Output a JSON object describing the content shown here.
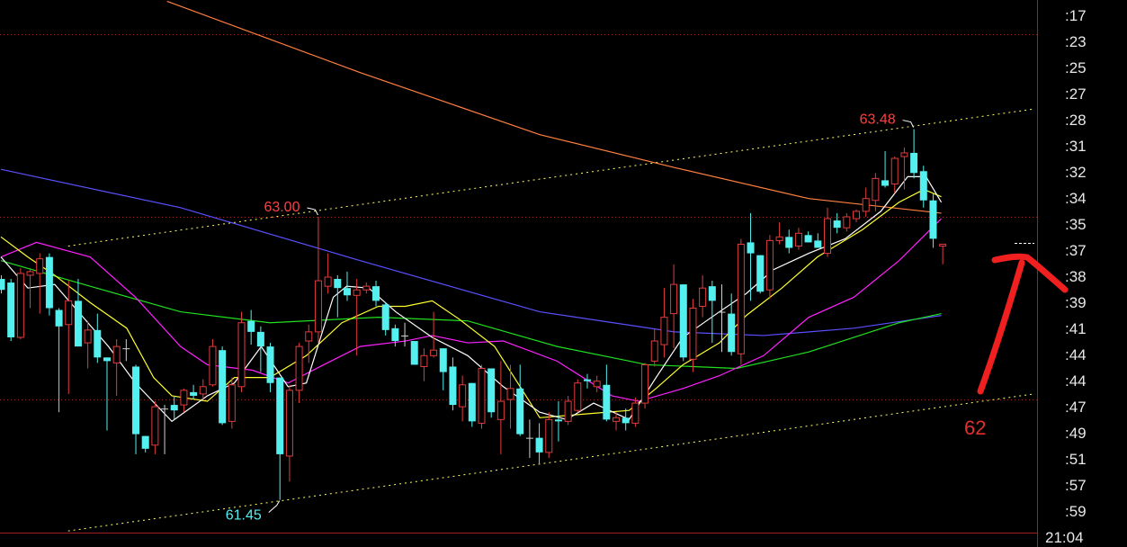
{
  "chart_data": {
    "type": "candlestick",
    "title": "",
    "colors": {
      "up": "#e03c3c",
      "down": "#54f0f0",
      "doji": "#d0d0d0",
      "grid": "#a02020",
      "channel": "#ffff60",
      "background": "#000000"
    },
    "candle_format": [
      "open",
      "high",
      "low",
      "close"
    ],
    "candles": [
      [
        62.66,
        62.68,
        62.58,
        62.6
      ],
      [
        62.64,
        62.66,
        62.32,
        62.34
      ],
      [
        62.34,
        62.72,
        62.33,
        62.69
      ],
      [
        62.68,
        62.72,
        62.5,
        62.7
      ],
      [
        62.69,
        62.8,
        62.47,
        62.77
      ],
      [
        62.78,
        62.8,
        62.46,
        62.5
      ],
      [
        62.49,
        62.5,
        61.93,
        62.4
      ],
      [
        62.41,
        62.65,
        62.03,
        62.54
      ],
      [
        62.54,
        62.66,
        62.29,
        62.29
      ],
      [
        62.31,
        62.43,
        62.17,
        62.38
      ],
      [
        62.38,
        62.47,
        62.2,
        62.23
      ],
      [
        62.23,
        62.23,
        61.83,
        62.21
      ],
      [
        62.2,
        62.33,
        62.02,
        62.29
      ],
      [
        62.28,
        62.33,
        62.21,
        62.28
      ],
      [
        62.18,
        62.19,
        61.7,
        61.81
      ],
      [
        61.8,
        61.8,
        61.71,
        61.73
      ],
      [
        61.75,
        61.99,
        61.7,
        61.96
      ],
      [
        61.95,
        61.97,
        61.7,
        61.95
      ],
      [
        61.97,
        62.02,
        61.89,
        61.94
      ],
      [
        61.97,
        62.06,
        61.93,
        62.05
      ],
      [
        62.04,
        62.08,
        62.0,
        62.02
      ],
      [
        62.03,
        62.11,
        62.0,
        62.07
      ],
      [
        62.08,
        62.33,
        62.07,
        62.29
      ],
      [
        62.27,
        62.29,
        61.86,
        61.87
      ],
      [
        61.88,
        62.12,
        61.84,
        62.08
      ],
      [
        62.07,
        62.48,
        62.04,
        62.42
      ],
      [
        62.43,
        62.49,
        62.3,
        62.37
      ],
      [
        62.37,
        62.4,
        62.15,
        62.29
      ],
      [
        62.29,
        62.31,
        62.04,
        62.09
      ],
      [
        62.12,
        62.12,
        61.45,
        61.7
      ],
      [
        61.69,
        62.08,
        61.55,
        62.05
      ],
      [
        62.05,
        62.31,
        61.98,
        62.29
      ],
      [
        62.32,
        62.41,
        62.2,
        62.37
      ],
      [
        62.37,
        63.0,
        62.31,
        62.65
      ],
      [
        62.62,
        62.8,
        62.58,
        62.67
      ],
      [
        62.66,
        62.68,
        62.45,
        62.61
      ],
      [
        62.61,
        62.7,
        62.54,
        62.57
      ],
      [
        62.57,
        62.66,
        62.24,
        62.6
      ],
      [
        62.6,
        62.64,
        62.58,
        62.62
      ],
      [
        62.62,
        62.65,
        62.51,
        62.54
      ],
      [
        62.52,
        62.53,
        62.35,
        62.38
      ],
      [
        62.39,
        62.41,
        62.29,
        62.32
      ],
      [
        62.35,
        62.42,
        62.29,
        62.35
      ],
      [
        62.32,
        62.32,
        62.19,
        62.19
      ],
      [
        62.18,
        62.28,
        62.1,
        62.24
      ],
      [
        62.24,
        62.48,
        62.23,
        62.27
      ],
      [
        62.28,
        62.28,
        62.05,
        62.15
      ],
      [
        62.18,
        62.23,
        61.94,
        61.97
      ],
      [
        61.96,
        62.13,
        61.88,
        62.08
      ],
      [
        62.09,
        62.09,
        61.85,
        61.88
      ],
      [
        61.87,
        62.19,
        61.84,
        62.17
      ],
      [
        62.17,
        62.17,
        61.9,
        61.93
      ],
      [
        61.89,
        62.21,
        61.7,
        61.99
      ],
      [
        62.0,
        62.19,
        61.84,
        62.06
      ],
      [
        62.06,
        62.19,
        61.8,
        61.81
      ],
      [
        61.79,
        61.89,
        61.68,
        61.79
      ],
      [
        61.79,
        61.87,
        61.65,
        61.71
      ],
      [
        61.71,
        61.93,
        61.68,
        61.89
      ],
      [
        61.89,
        61.99,
        61.77,
        61.88
      ],
      [
        61.88,
        62.02,
        61.86,
        61.99
      ],
      [
        61.94,
        62.11,
        61.93,
        62.09
      ],
      [
        62.11,
        62.14,
        62.06,
        62.1
      ],
      [
        62.07,
        62.13,
        62.04,
        62.1
      ],
      [
        62.08,
        62.19,
        61.88,
        61.89
      ],
      [
        61.88,
        61.93,
        61.83,
        61.9
      ],
      [
        61.9,
        61.95,
        61.83,
        61.87
      ],
      [
        61.87,
        62.01,
        61.85,
        61.98
      ],
      [
        61.98,
        62.2,
        61.95,
        62.19
      ],
      [
        62.21,
        62.39,
        62.18,
        62.32
      ],
      [
        62.3,
        62.61,
        62.23,
        62.45
      ],
      [
        62.47,
        62.74,
        62.28,
        62.63
      ],
      [
        62.63,
        62.63,
        62.21,
        62.23
      ],
      [
        62.22,
        62.55,
        62.15,
        62.5
      ],
      [
        62.51,
        62.68,
        62.45,
        62.61
      ],
      [
        62.62,
        62.65,
        62.31,
        62.54
      ],
      [
        62.48,
        62.63,
        62.26,
        62.48
      ],
      [
        62.47,
        62.58,
        62.24,
        62.26
      ],
      [
        62.25,
        62.88,
        62.19,
        62.85
      ],
      [
        62.86,
        63.02,
        62.54,
        62.8
      ],
      [
        62.79,
        62.79,
        62.58,
        62.59
      ],
      [
        62.6,
        62.9,
        62.55,
        62.87
      ],
      [
        62.87,
        62.97,
        62.85,
        62.89
      ],
      [
        62.89,
        62.93,
        62.8,
        62.83
      ],
      [
        62.84,
        62.94,
        62.82,
        62.91
      ],
      [
        62.9,
        62.92,
        62.86,
        62.86
      ],
      [
        62.87,
        62.91,
        62.83,
        62.83
      ],
      [
        62.8,
        63.05,
        62.78,
        62.99
      ],
      [
        62.98,
        63.02,
        62.91,
        62.94
      ],
      [
        62.94,
        63.02,
        62.92,
        63.0
      ],
      [
        62.99,
        63.04,
        62.97,
        63.03
      ],
      [
        63.03,
        63.16,
        63.0,
        63.1
      ],
      [
        63.09,
        63.24,
        63.03,
        63.21
      ],
      [
        63.2,
        63.36,
        63.16,
        63.17
      ],
      [
        63.18,
        63.33,
        63.13,
        63.32
      ],
      [
        63.33,
        63.38,
        63.15,
        63.35
      ],
      [
        63.35,
        63.48,
        63.21,
        63.24
      ],
      [
        63.25,
        63.28,
        63.05,
        63.09
      ],
      [
        63.09,
        63.13,
        62.83,
        62.88
      ],
      [
        62.84,
        62.85,
        62.74,
        62.85
      ]
    ],
    "moving_averages": [
      {
        "color": "#ff8040",
        "points": [
          [
            17.3,
            64.18
          ],
          [
            37.4,
            63.79
          ],
          [
            56.1,
            63.45
          ],
          [
            70.1,
            63.27
          ],
          [
            84.1,
            63.1
          ],
          [
            97.9,
            63.02
          ]
        ]
      },
      {
        "color": "#5a50ff",
        "points": [
          [
            0,
            63.26
          ],
          [
            18.7,
            63.05
          ],
          [
            37.4,
            62.76
          ],
          [
            56.1,
            62.48
          ],
          [
            70.1,
            62.37
          ],
          [
            79.4,
            62.35
          ],
          [
            88.8,
            62.39
          ],
          [
            97.9,
            62.46
          ]
        ]
      },
      {
        "color": "#20e020",
        "points": [
          [
            0,
            62.76
          ],
          [
            9.3,
            62.62
          ],
          [
            18.7,
            62.48
          ],
          [
            28,
            62.42
          ],
          [
            39.3,
            62.45
          ],
          [
            48.6,
            62.43
          ],
          [
            57.9,
            62.29
          ],
          [
            67.3,
            62.19
          ],
          [
            76.6,
            62.17
          ],
          [
            84.1,
            62.26
          ],
          [
            93.5,
            62.42
          ],
          [
            97.9,
            62.47
          ]
        ]
      },
      {
        "color": "#ff20ff",
        "points": [
          [
            0,
            62.78
          ],
          [
            3.7,
            62.86
          ],
          [
            9.3,
            62.78
          ],
          [
            14,
            62.56
          ],
          [
            18.7,
            62.29
          ],
          [
            21.5,
            62.19
          ],
          [
            26.2,
            62.16
          ],
          [
            29.9,
            62.09
          ],
          [
            33.6,
            62.19
          ],
          [
            37.4,
            62.29
          ],
          [
            42.1,
            62.32
          ],
          [
            44.9,
            62.35
          ],
          [
            48.6,
            62.31
          ],
          [
            52.3,
            62.32
          ],
          [
            57.9,
            62.21
          ],
          [
            63.6,
            62.02
          ],
          [
            66.4,
            61.99
          ],
          [
            71,
            62.06
          ],
          [
            74.8,
            62.13
          ],
          [
            79.4,
            62.24
          ],
          [
            84.1,
            62.45
          ],
          [
            88.8,
            62.56
          ],
          [
            93.5,
            62.76
          ],
          [
            97.9,
            62.99
          ]
        ]
      },
      {
        "color": "#ffff30",
        "points": [
          [
            0,
            62.89
          ],
          [
            2.8,
            62.78
          ],
          [
            5.6,
            62.68
          ],
          [
            9.3,
            62.53
          ],
          [
            13.1,
            62.39
          ],
          [
            15.9,
            62.12
          ],
          [
            17.8,
            62.02
          ],
          [
            21.5,
            61.99
          ],
          [
            24.3,
            62.12
          ],
          [
            28,
            62.12
          ],
          [
            31.8,
            62.24
          ],
          [
            35.5,
            62.42
          ],
          [
            39.3,
            62.51
          ],
          [
            42.1,
            62.51
          ],
          [
            44.9,
            62.54
          ],
          [
            47.7,
            62.44
          ],
          [
            51.4,
            62.29
          ],
          [
            56.1,
            61.9
          ],
          [
            60.7,
            61.92
          ],
          [
            65.4,
            61.94
          ],
          [
            68.2,
            62.06
          ],
          [
            71,
            62.19
          ],
          [
            74.8,
            62.31
          ],
          [
            77.6,
            62.46
          ],
          [
            81.3,
            62.61
          ],
          [
            85,
            62.78
          ],
          [
            89.7,
            62.93
          ],
          [
            93.5,
            63.08
          ],
          [
            96.1,
            63.15
          ],
          [
            97.9,
            63.11
          ]
        ]
      },
      {
        "color": "#ffffff",
        "points": [
          [
            0,
            62.78
          ],
          [
            2.8,
            62.61
          ],
          [
            5.6,
            62.63
          ],
          [
            8.4,
            62.46
          ],
          [
            11.2,
            62.29
          ],
          [
            14,
            62.09
          ],
          [
            17.8,
            61.88
          ],
          [
            21.5,
            62.02
          ],
          [
            24.3,
            62.09
          ],
          [
            27.1,
            62.29
          ],
          [
            29.9,
            62.07
          ],
          [
            31.8,
            62.09
          ],
          [
            34.6,
            62.56
          ],
          [
            36,
            62.62
          ],
          [
            38.3,
            62.61
          ],
          [
            41.1,
            62.48
          ],
          [
            44.9,
            62.34
          ],
          [
            48.6,
            62.24
          ],
          [
            52.3,
            62.07
          ],
          [
            56.1,
            61.93
          ],
          [
            58.9,
            61.89
          ],
          [
            61.7,
            61.98
          ],
          [
            65.4,
            61.89
          ],
          [
            68.2,
            62.12
          ],
          [
            71,
            62.34
          ],
          [
            74.8,
            62.48
          ],
          [
            77.6,
            62.58
          ],
          [
            80.4,
            62.71
          ],
          [
            84.1,
            62.8
          ],
          [
            87.9,
            62.88
          ],
          [
            91.6,
            63.03
          ],
          [
            94.4,
            63.22
          ],
          [
            96.3,
            63.22
          ],
          [
            97.9,
            63.08
          ]
        ]
      }
    ],
    "channel_lines": [
      {
        "from": [
          7,
          62.84
        ],
        "to": [
          107.5,
          63.59
        ]
      },
      {
        "from": [
          7,
          61.28
        ],
        "to": [
          107.5,
          62.03
        ]
      }
    ],
    "gridlines_price": [
      64.0,
      63.0,
      62.0
    ],
    "annotations": [
      {
        "text": "63.00",
        "candle": 33,
        "price": 63.0,
        "color": "#ff4040"
      },
      {
        "text": "63.48",
        "candle": 95,
        "price": 63.48,
        "color": "#ff4040"
      },
      {
        "text": "61.45",
        "candle": 29,
        "price": 61.45,
        "color": "#54f0f0"
      }
    ],
    "handwritten_label": "62",
    "right_axis_labels": [
      ":17",
      ":23",
      ":25",
      ":27",
      ":28",
      ":31",
      ":32",
      ":34",
      ":35",
      ":37",
      ":38",
      ":39",
      ":41",
      ":44",
      ":44",
      ":47",
      ":49",
      ":51",
      ":57",
      ":59",
      "21:04"
    ]
  }
}
